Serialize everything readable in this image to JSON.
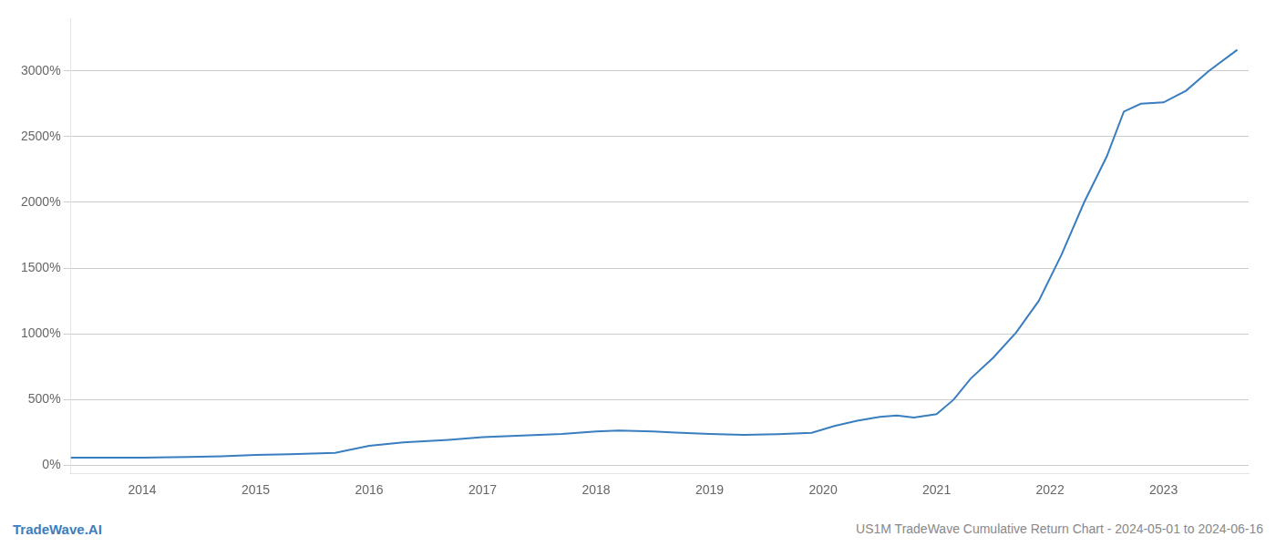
{
  "chart_data": {
    "type": "line",
    "title": "US1M TradeWave Cumulative Return Chart - 2024-05-01 to 2024-06-16",
    "subtitle": "TradeWave.AI",
    "x": [
      2013.37,
      2013.6,
      2014.0,
      2014.4,
      2014.7,
      2015.0,
      2015.3,
      2015.7,
      2016.0,
      2016.3,
      2016.7,
      2017.0,
      2017.3,
      2017.7,
      2018.0,
      2018.2,
      2018.5,
      2018.7,
      2019.0,
      2019.3,
      2019.6,
      2019.9,
      2020.1,
      2020.3,
      2020.5,
      2020.65,
      2020.8,
      2021.0,
      2021.15,
      2021.3,
      2021.5,
      2021.7,
      2021.9,
      2022.1,
      2022.3,
      2022.5,
      2022.65,
      2022.8,
      2023.0,
      2023.2,
      2023.4,
      2023.65
    ],
    "values": [
      60,
      60,
      60,
      65,
      70,
      80,
      85,
      95,
      150,
      175,
      195,
      215,
      225,
      240,
      258,
      265,
      258,
      250,
      240,
      232,
      238,
      248,
      300,
      340,
      370,
      380,
      365,
      390,
      500,
      660,
      820,
      1010,
      1250,
      1600,
      2000,
      2350,
      2690,
      2750,
      2760,
      2850,
      3000,
      3160
    ],
    "color": "#3a7ebf",
    "xlim": [
      2013.37,
      2023.75
    ],
    "xticks": [
      2014,
      2015,
      2016,
      2017,
      2018,
      2019,
      2020,
      2021,
      2022,
      2023
    ],
    "ylim": [
      -60,
      3400
    ],
    "yticks": [
      {
        "value": 0,
        "label": "0%"
      },
      {
        "value": 500,
        "label": "500%"
      },
      {
        "value": 1000,
        "label": "1000%"
      },
      {
        "value": 1500,
        "label": "1500%"
      },
      {
        "value": 2000,
        "label": "2000%"
      },
      {
        "value": 2500,
        "label": "2500%"
      },
      {
        "value": 3000,
        "label": "3000%"
      }
    ],
    "grid": true
  }
}
